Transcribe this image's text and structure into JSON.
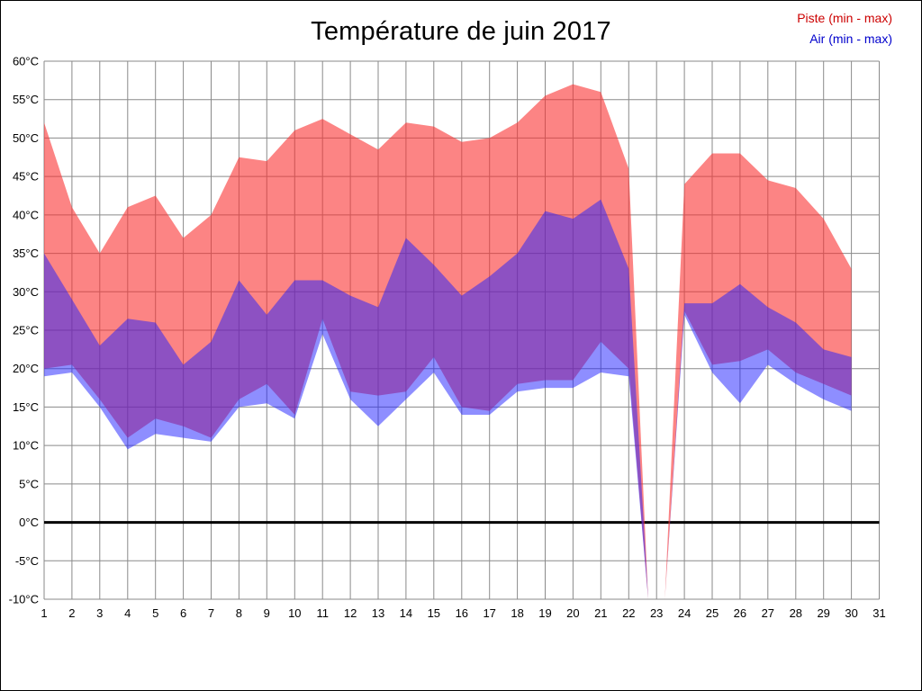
{
  "title": "Température de juin 2017",
  "legend": [
    {
      "label": "Piste (min - max)",
      "color": "#cc0000"
    },
    {
      "label": "Air (min - max)",
      "color": "#0000cc"
    }
  ],
  "chart_data": {
    "type": "area",
    "title": "Température de juin 2017",
    "xlabel": "",
    "ylabel": "",
    "xlim": [
      1,
      31
    ],
    "ylim": [
      -10,
      60
    ],
    "grid": true,
    "zero_line": true,
    "x": [
      1,
      2,
      3,
      4,
      5,
      6,
      7,
      8,
      9,
      10,
      11,
      12,
      13,
      14,
      15,
      16,
      17,
      18,
      19,
      20,
      21,
      22,
      22.7,
      23.3,
      24,
      25,
      26,
      27,
      28,
      29,
      30
    ],
    "series": [
      {
        "id": "piste",
        "name": "Piste (min - max)",
        "color": "rgba(250,50,50,0.6)",
        "max": [
          52,
          41,
          35,
          41,
          42.5,
          37,
          40,
          47.5,
          47,
          51,
          52.5,
          50.5,
          48.5,
          52,
          51.5,
          49.5,
          50,
          52,
          55.5,
          57,
          56,
          46,
          -10,
          -10,
          44,
          48,
          48,
          44.5,
          43.5,
          39.5,
          33
        ],
        "min": [
          20,
          20.5,
          16,
          11,
          13.5,
          12.5,
          11,
          16,
          18,
          14,
          26.5,
          17,
          16.5,
          17,
          21.5,
          15,
          14.5,
          18,
          18.5,
          18.5,
          23.5,
          20,
          -10,
          -10,
          27.5,
          20.5,
          21,
          22.5,
          19.5,
          18,
          16.5
        ]
      },
      {
        "id": "air",
        "name": "Air (min - max)",
        "color": "rgba(30,30,255,0.5)",
        "max": [
          35,
          29,
          23,
          26.5,
          26,
          20.5,
          23.5,
          31.5,
          27,
          31.5,
          31.5,
          29.5,
          28,
          37,
          33.5,
          29.5,
          32,
          35,
          40.5,
          39.5,
          42,
          33,
          -10,
          -10,
          28.5,
          28.5,
          31,
          28,
          26,
          22.5,
          21.5
        ],
        "min": [
          19,
          19.5,
          15,
          9.5,
          11.5,
          11,
          10.5,
          15,
          15.5,
          13.5,
          24.5,
          16,
          12.5,
          16,
          19.5,
          14,
          14,
          17,
          17.5,
          17.5,
          19.5,
          19,
          -10,
          -10,
          27,
          19.5,
          15.5,
          20.5,
          18,
          16,
          14.5
        ]
      }
    ],
    "y_ticks": [
      {
        "v": 60,
        "label": "60°C"
      },
      {
        "v": 55,
        "label": "55°C"
      },
      {
        "v": 50,
        "label": "50°C"
      },
      {
        "v": 45,
        "label": "45°C"
      },
      {
        "v": 40,
        "label": "40°C"
      },
      {
        "v": 35,
        "label": "35°C"
      },
      {
        "v": 30,
        "label": "30°C"
      },
      {
        "v": 25,
        "label": "25°C"
      },
      {
        "v": 20,
        "label": "20°C"
      },
      {
        "v": 15,
        "label": "15°C"
      },
      {
        "v": 10,
        "label": "10°C"
      },
      {
        "v": 5,
        "label": "5°C"
      },
      {
        "v": 0,
        "label": "0°C"
      },
      {
        "v": -5,
        "label": "-5°C"
      },
      {
        "v": -10,
        "label": "-10°C"
      }
    ],
    "x_ticks": [
      {
        "v": 1,
        "label": "1"
      },
      {
        "v": 2,
        "label": "2"
      },
      {
        "v": 3,
        "label": "3"
      },
      {
        "v": 4,
        "label": "4"
      },
      {
        "v": 5,
        "label": "5"
      },
      {
        "v": 6,
        "label": "6"
      },
      {
        "v": 7,
        "label": "7"
      },
      {
        "v": 8,
        "label": "8"
      },
      {
        "v": 9,
        "label": "9"
      },
      {
        "v": 10,
        "label": "10"
      },
      {
        "v": 11,
        "label": "11"
      },
      {
        "v": 12,
        "label": "12"
      },
      {
        "v": 13,
        "label": "13"
      },
      {
        "v": 14,
        "label": "14"
      },
      {
        "v": 15,
        "label": "15"
      },
      {
        "v": 16,
        "label": "16"
      },
      {
        "v": 17,
        "label": "17"
      },
      {
        "v": 18,
        "label": "18"
      },
      {
        "v": 19,
        "label": "19"
      },
      {
        "v": 20,
        "label": "20"
      },
      {
        "v": 21,
        "label": "21"
      },
      {
        "v": 22,
        "label": "22"
      },
      {
        "v": 23,
        "label": "23"
      },
      {
        "v": 24,
        "label": "24"
      },
      {
        "v": 25,
        "label": "25"
      },
      {
        "v": 26,
        "label": "26"
      },
      {
        "v": 27,
        "label": "27"
      },
      {
        "v": 28,
        "label": "28"
      },
      {
        "v": 29,
        "label": "29"
      },
      {
        "v": 30,
        "label": "30"
      },
      {
        "v": 31,
        "label": "31"
      }
    ]
  }
}
